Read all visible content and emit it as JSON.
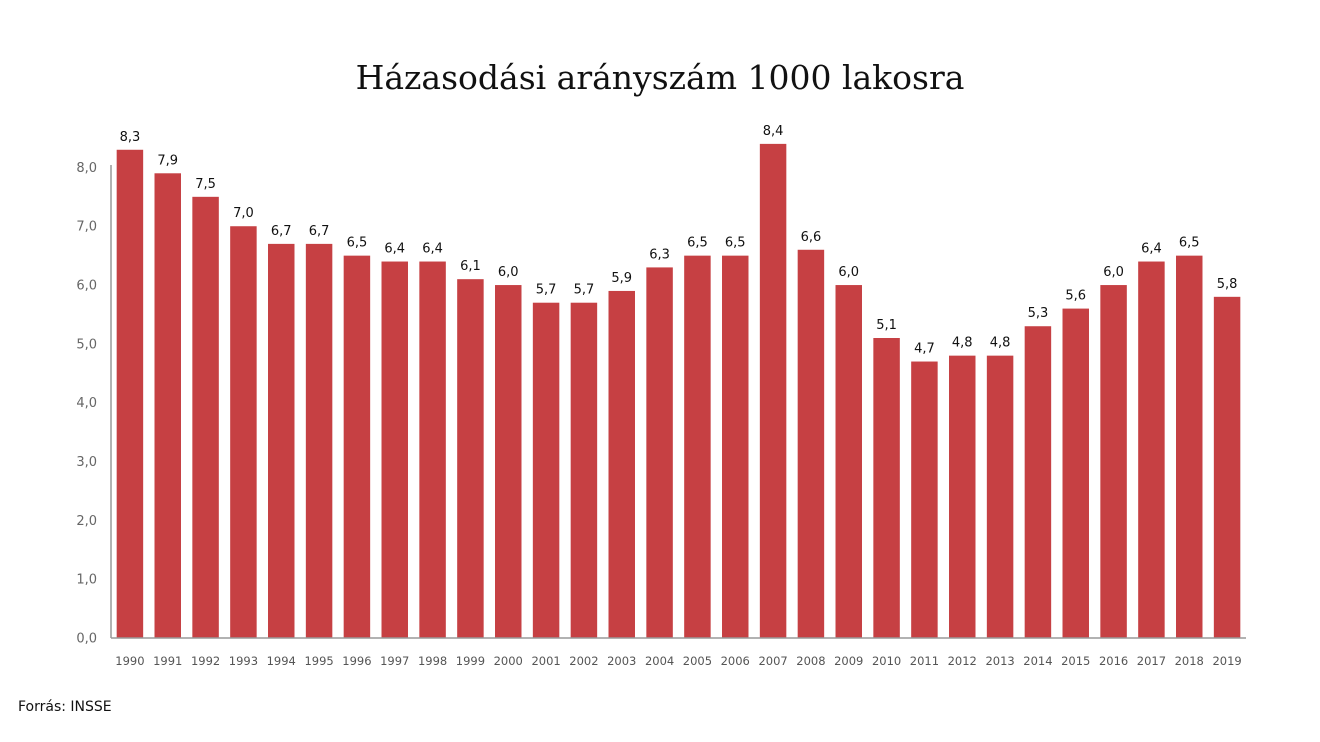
{
  "colors": {
    "bar": "#c64043",
    "axis": "#999999"
  },
  "source": "Forrás: INSSE",
  "chart_data": {
    "type": "bar",
    "title": "Házasodási arányszám 1000 lakosra",
    "xlabel": "",
    "ylabel": "",
    "ylim": [
      0,
      8.5
    ],
    "yticks": [
      0,
      1,
      2,
      3,
      4,
      5,
      6,
      7,
      8
    ],
    "ytick_labels": [
      "0,0",
      "1,0",
      "2,0",
      "3,0",
      "4,0",
      "5,0",
      "6,0",
      "7,0",
      "8,0"
    ],
    "grid": false,
    "legend": "none",
    "categories": [
      "1990",
      "1991",
      "1992",
      "1993",
      "1994",
      "1995",
      "1996",
      "1997",
      "1998",
      "1999",
      "2000",
      "2001",
      "2002",
      "2003",
      "2004",
      "2005",
      "2006",
      "2007",
      "2008",
      "2009",
      "2010",
      "2011",
      "2012",
      "2013",
      "2014",
      "2015",
      "2016",
      "2017",
      "2018",
      "2019"
    ],
    "values": [
      8.3,
      7.9,
      7.5,
      7.0,
      6.7,
      6.7,
      6.5,
      6.4,
      6.4,
      6.1,
      6.0,
      5.7,
      5.7,
      5.9,
      6.3,
      6.5,
      6.5,
      8.4,
      6.6,
      6.0,
      5.1,
      4.7,
      4.8,
      4.8,
      5.3,
      5.6,
      6.0,
      6.4,
      6.5,
      5.8
    ],
    "value_labels": [
      "8,3",
      "7,9",
      "7,5",
      "7,0",
      "6,7",
      "6,7",
      "6,5",
      "6,4",
      "6,4",
      "6,1",
      "6,0",
      "5,7",
      "5,7",
      "5,9",
      "6,3",
      "6,5",
      "6,5",
      "8,4",
      "6,6",
      "6,0",
      "5,1",
      "4,7",
      "4,8",
      "4,8",
      "5,3",
      "5,6",
      "6,0",
      "6,4",
      "6,5",
      "5,8"
    ]
  }
}
